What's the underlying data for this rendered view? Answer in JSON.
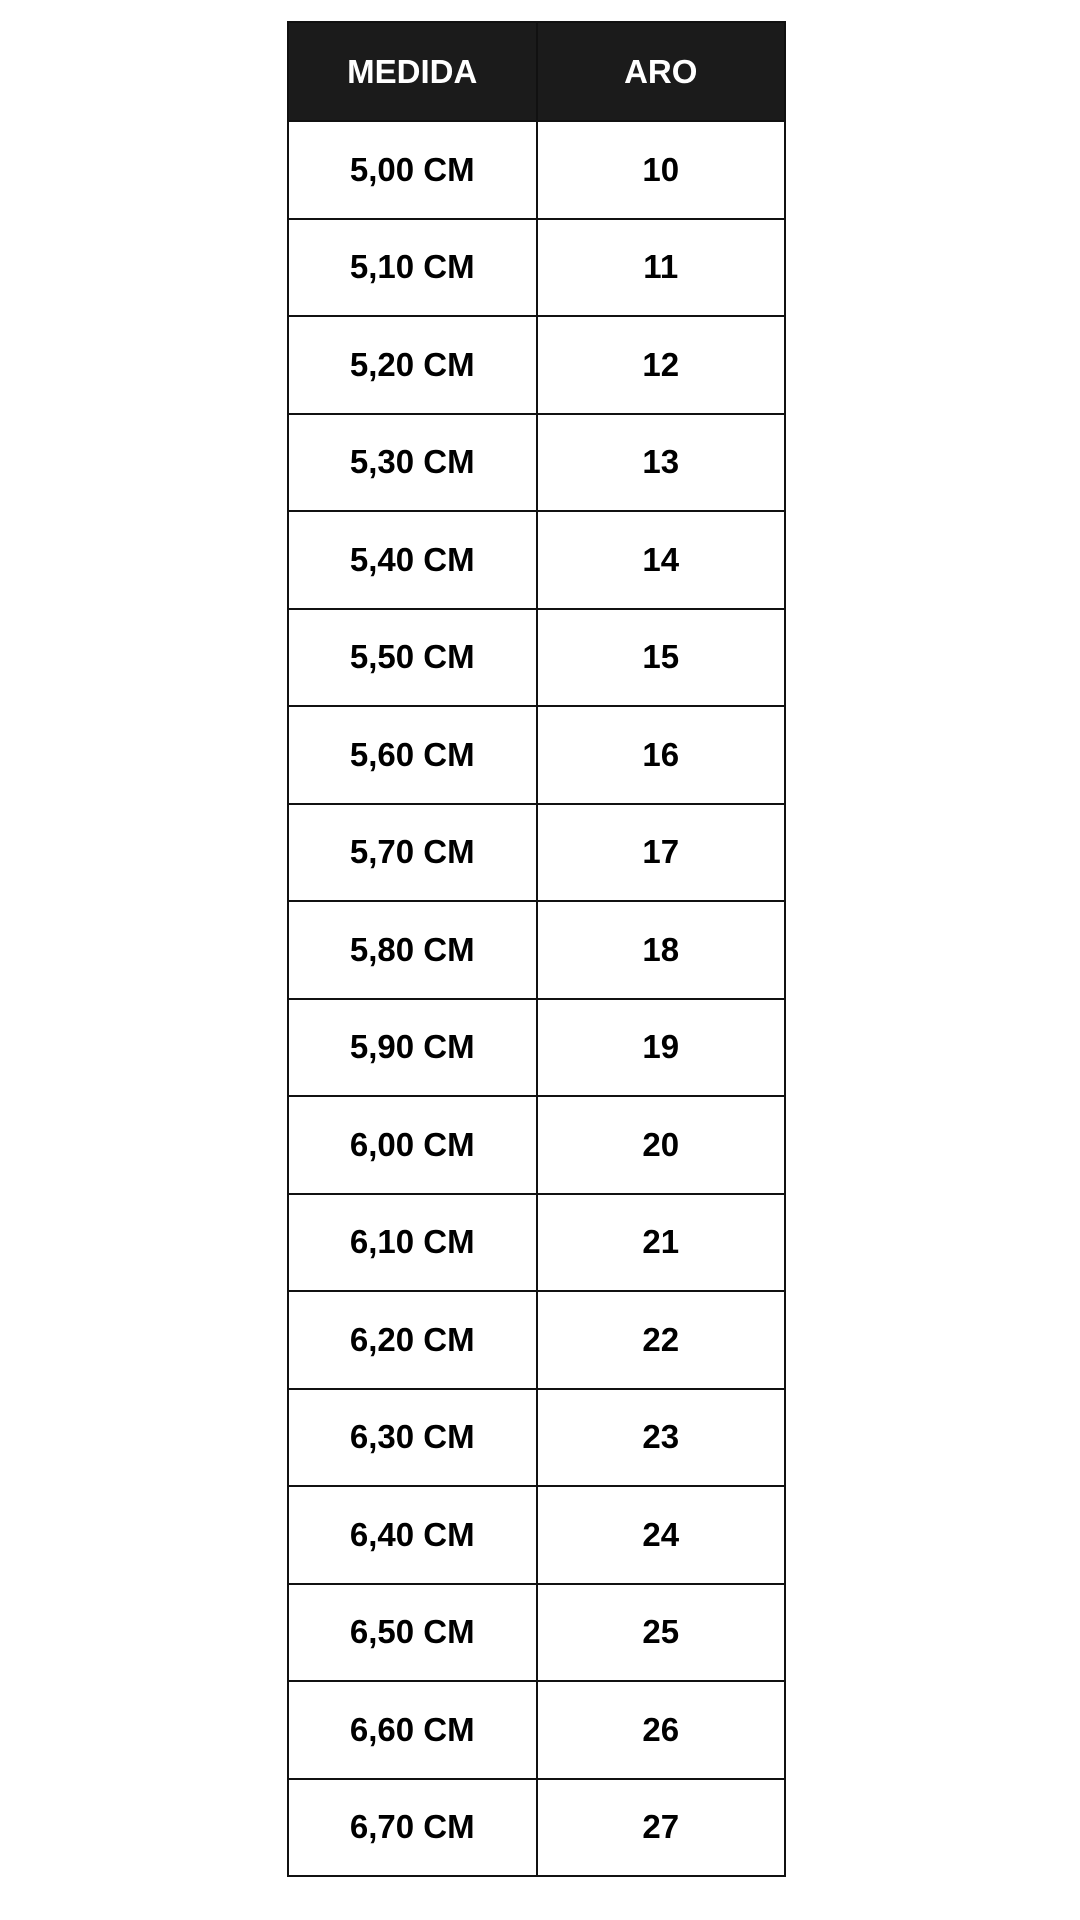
{
  "table": {
    "headers": [
      "MEDIDA",
      "ARO"
    ],
    "rows": [
      [
        "5,00 CM",
        "10"
      ],
      [
        "5,10 CM",
        "11"
      ],
      [
        "5,20 CM",
        "12"
      ],
      [
        "5,30 CM",
        "13"
      ],
      [
        "5,40 CM",
        "14"
      ],
      [
        "5,50 CM",
        "15"
      ],
      [
        "5,60 CM",
        "16"
      ],
      [
        "5,70 CM",
        "17"
      ],
      [
        "5,80 CM",
        "18"
      ],
      [
        "5,90 CM",
        "19"
      ],
      [
        "6,00 CM",
        "20"
      ],
      [
        "6,10 CM",
        "21"
      ],
      [
        "6,20 CM",
        "22"
      ],
      [
        "6,30 CM",
        "23"
      ],
      [
        "6,40 CM",
        "24"
      ],
      [
        "6,50 CM",
        "25"
      ],
      [
        "6,60 CM",
        "26"
      ],
      [
        "6,70 CM",
        "27"
      ]
    ]
  },
  "colors": {
    "header_bg": "#1b1b1b",
    "header_text": "#ffffff",
    "border": "#111111"
  }
}
